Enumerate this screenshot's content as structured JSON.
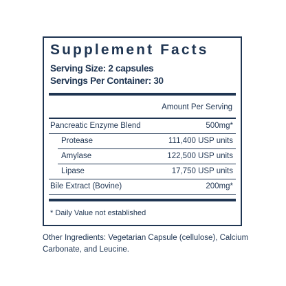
{
  "title": "Supplement Facts",
  "serving_size": "Serving Size: 2 capsules",
  "servings_per_container": "Servings Per Container: 30",
  "amount_header": "Amount Per Serving",
  "rows": [
    {
      "name": "Pancreatic Enzyme Blend",
      "amount": "500mg*"
    },
    {
      "name": "Protease",
      "amount": "111,400 USP units"
    },
    {
      "name": "Amylase",
      "amount": "122,500 USP units"
    },
    {
      "name": "Lipase",
      "amount": "17,750 USP units"
    },
    {
      "name": "Bile Extract (Bovine)",
      "amount": "200mg*"
    }
  ],
  "daily_value_note": "* Daily Value not established",
  "other_ingredients": "Other Ingredients: Vegetarian Capsule (cellulose), Calcium Carbonate, and Leucine.",
  "colors": {
    "navy": "#1f3552",
    "background": "#ffffff"
  }
}
